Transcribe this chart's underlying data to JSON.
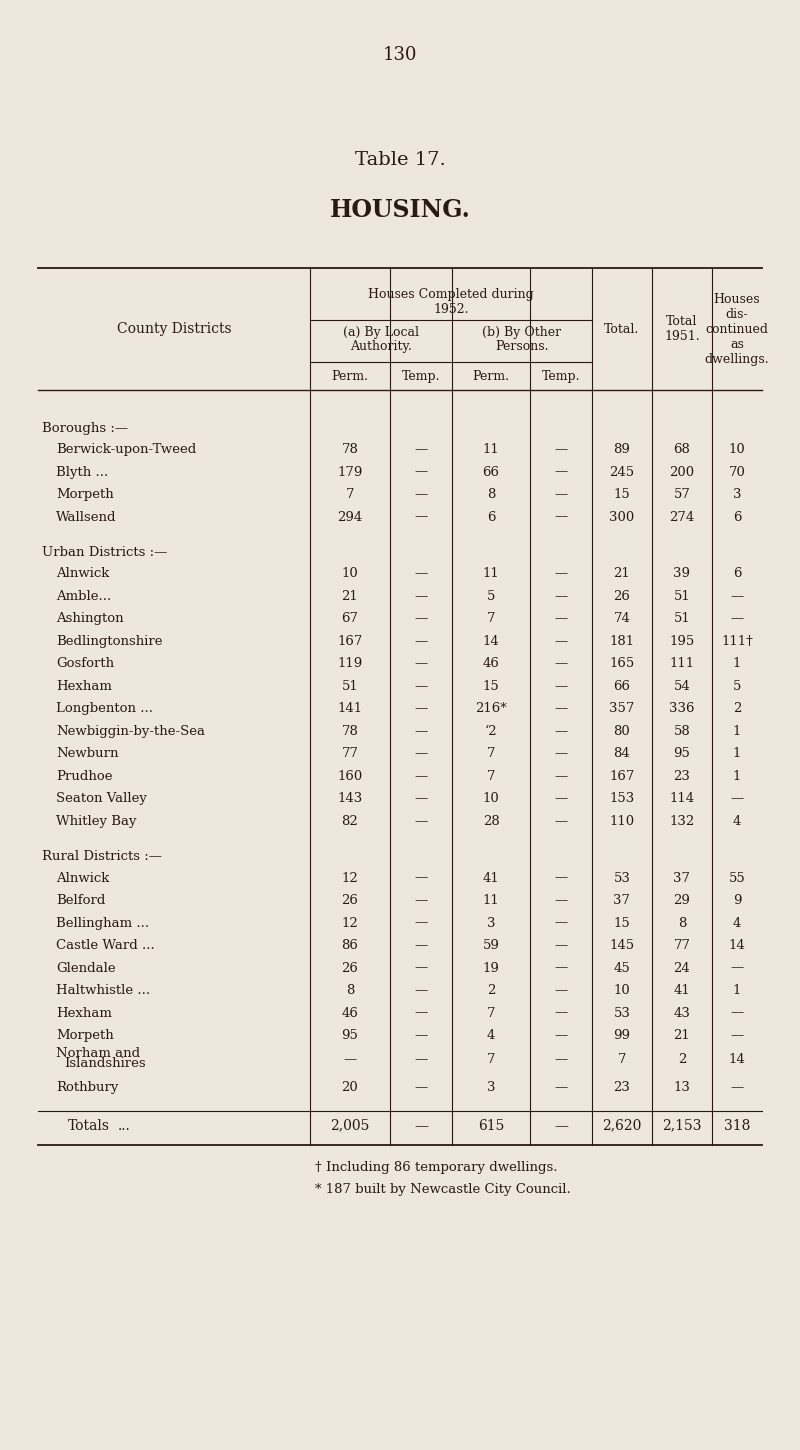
{
  "page_number": "130",
  "title1": "Table 17.",
  "title2": "HOUSING.",
  "bg_color": "#ede8db",
  "text_color": "#2a1a14",
  "sections": [
    {
      "section_label": "Boroughs :—",
      "rows": [
        {
          "name": "Berwick-upon-Tweed",
          "dots": false,
          "a_perm": "78",
          "a_temp": "—",
          "b_perm": "11",
          "b_temp": "—",
          "total": "89",
          "total1951": "68",
          "disc": "10"
        },
        {
          "name": "Blyth ...",
          "dots": true,
          "a_perm": "179",
          "a_temp": "—",
          "b_perm": "66",
          "b_temp": "—",
          "total": "245",
          "total1951": "200",
          "disc": "70"
        },
        {
          "name": "Morpeth",
          "dots": true,
          "a_perm": "7",
          "a_temp": "—",
          "b_perm": "8",
          "b_temp": "—",
          "total": "15",
          "total1951": "57",
          "disc": "3"
        },
        {
          "name": "Wallsend",
          "dots": true,
          "a_perm": "294",
          "a_temp": "—",
          "b_perm": "6",
          "b_temp": "—",
          "total": "300",
          "total1951": "274",
          "disc": "6"
        }
      ]
    },
    {
      "section_label": "Urban Districts :—",
      "rows": [
        {
          "name": "Alnwick",
          "dots": true,
          "a_perm": "10",
          "a_temp": "—",
          "b_perm": "11",
          "b_temp": "—",
          "total": "21",
          "total1951": "39",
          "disc": "6"
        },
        {
          "name": "Amble...",
          "dots": true,
          "a_perm": "21",
          "a_temp": "—",
          "b_perm": "5",
          "b_temp": "—",
          "total": "26",
          "total1951": "51",
          "disc": "—"
        },
        {
          "name": "Ashington",
          "dots": true,
          "a_perm": "67",
          "a_temp": "—",
          "b_perm": "7",
          "b_temp": "—",
          "total": "74",
          "total1951": "51",
          "disc": "—"
        },
        {
          "name": "Bedlingtonshire",
          "dots": true,
          "a_perm": "167",
          "a_temp": "—",
          "b_perm": "14",
          "b_temp": "—",
          "total": "181",
          "total1951": "195",
          "disc": "111†"
        },
        {
          "name": "Gosforth",
          "dots": true,
          "a_perm": "119",
          "a_temp": "—",
          "b_perm": "46",
          "b_temp": "—",
          "total": "165",
          "total1951": "111",
          "disc": "1"
        },
        {
          "name": "Hexham",
          "dots": true,
          "a_perm": "51",
          "a_temp": "—",
          "b_perm": "15",
          "b_temp": "—",
          "total": "66",
          "total1951": "54",
          "disc": "5"
        },
        {
          "name": "Longbenton ...",
          "dots": true,
          "a_perm": "141",
          "a_temp": "—",
          "b_perm": "216*",
          "b_temp": "—",
          "total": "357",
          "total1951": "336",
          "disc": "2"
        },
        {
          "name": "Newbiggin-by-the-Sea",
          "dots": false,
          "a_perm": "78",
          "a_temp": "—",
          "b_perm": "‘2",
          "b_temp": "—",
          "total": "80",
          "total1951": "58",
          "disc": "1"
        },
        {
          "name": "Newburn",
          "dots": true,
          "a_perm": "77",
          "a_temp": "—",
          "b_perm": "7",
          "b_temp": "—",
          "total": "84",
          "total1951": "95",
          "disc": "1"
        },
        {
          "name": "Prudhoe",
          "dots": true,
          "a_perm": "160",
          "a_temp": "—",
          "b_perm": "7",
          "b_temp": "—",
          "total": "167",
          "total1951": "23",
          "disc": "1"
        },
        {
          "name": "Seaton Valley",
          "dots": true,
          "a_perm": "143",
          "a_temp": "—",
          "b_perm": "10",
          "b_temp": "—",
          "total": "153",
          "total1951": "114",
          "disc": "—"
        },
        {
          "name": "Whitley Bay",
          "dots": true,
          "a_perm": "82",
          "a_temp": "—",
          "b_perm": "28",
          "b_temp": "—",
          "total": "110",
          "total1951": "132",
          "disc": "4"
        }
      ]
    },
    {
      "section_label": "Rural Districts :—",
      "rows": [
        {
          "name": "Alnwick",
          "dots": true,
          "a_perm": "12",
          "a_temp": "—",
          "b_perm": "41",
          "b_temp": "—",
          "total": "53",
          "total1951": "37",
          "disc": "55"
        },
        {
          "name": "Belford",
          "dots": true,
          "a_perm": "26",
          "a_temp": "—",
          "b_perm": "11",
          "b_temp": "—",
          "total": "37",
          "total1951": "29",
          "disc": "9"
        },
        {
          "name": "Bellingham ...",
          "dots": true,
          "a_perm": "12",
          "a_temp": "—",
          "b_perm": "3",
          "b_temp": "—",
          "total": "15",
          "total1951": "8",
          "disc": "4"
        },
        {
          "name": "Castle Ward ...",
          "dots": false,
          "a_perm": "86",
          "a_temp": "—",
          "b_perm": "59",
          "b_temp": "—",
          "total": "145",
          "total1951": "77",
          "disc": "14"
        },
        {
          "name": "Glendale",
          "dots": true,
          "a_perm": "26",
          "a_temp": "—",
          "b_perm": "19",
          "b_temp": "—",
          "total": "45",
          "total1951": "24",
          "disc": "—"
        },
        {
          "name": "Haltwhistle ...",
          "dots": true,
          "a_perm": "8",
          "a_temp": "—",
          "b_perm": "2",
          "b_temp": "—",
          "total": "10",
          "total1951": "41",
          "disc": "1"
        },
        {
          "name": "Hexham",
          "dots": true,
          "a_perm": "46",
          "a_temp": "—",
          "b_perm": "7",
          "b_temp": "—",
          "total": "53",
          "total1951": "43",
          "disc": "—"
        },
        {
          "name": "Morpeth",
          "dots": true,
          "a_perm": "95",
          "a_temp": "—",
          "b_perm": "4",
          "b_temp": "—",
          "total": "99",
          "total1951": "21",
          "disc": "—"
        },
        {
          "name": "Norham and Islandshires",
          "dots": true,
          "a_perm": "—",
          "a_temp": "—",
          "b_perm": "7",
          "b_temp": "—",
          "total": "7",
          "total1951": "2",
          "disc": "14"
        },
        {
          "name": "Rothbury",
          "dots": true,
          "a_perm": "20",
          "a_temp": "—",
          "b_perm": "3",
          "b_temp": "—",
          "total": "23",
          "total1951": "13",
          "disc": "—"
        }
      ]
    }
  ],
  "totals_row": {
    "a_perm": "2,005",
    "a_temp": "—",
    "b_perm": "615",
    "b_temp": "—",
    "total": "2,620",
    "total1951": "2,153",
    "disc": "318"
  },
  "footnote1": "† Including 86 temporary dwellings.",
  "footnote2": "* 187 built by Newcastle City Council.",
  "norham_line2": "   Islandshires"
}
